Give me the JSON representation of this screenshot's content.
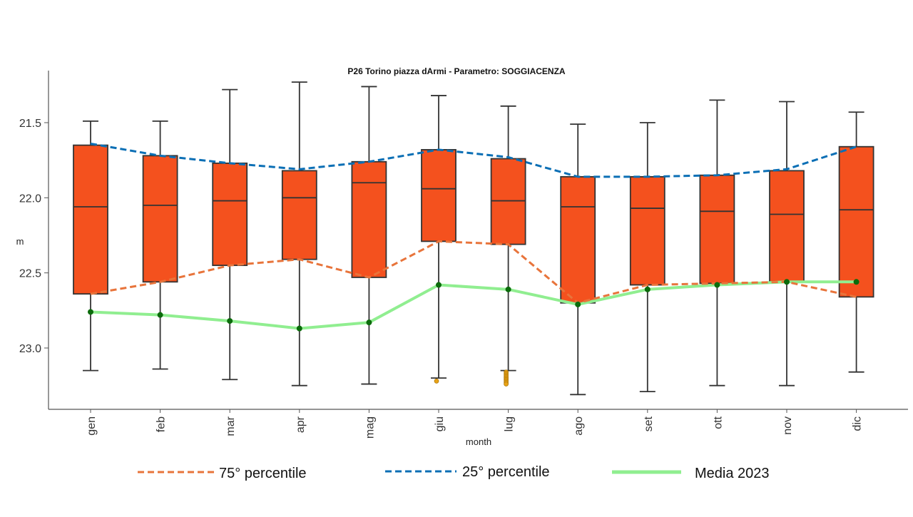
{
  "chart_data": {
    "type": "box",
    "title": "P26 Torino piazza dArmi - Parametro: SOGGIACENZA",
    "xlabel": "month",
    "ylabel": "m",
    "y_inverted": true,
    "ylim": [
      21.2,
      23.4
    ],
    "yticks": [
      "21.5",
      "22.0",
      "22.5",
      "23.0"
    ],
    "categories": [
      "gen",
      "feb",
      "mar",
      "apr",
      "mag",
      "giu",
      "lug",
      "ago",
      "set",
      "ott",
      "nov",
      "dic"
    ],
    "boxes": [
      {
        "whisker_low": 21.49,
        "q1": 21.65,
        "median": 22.06,
        "q3": 22.64,
        "whisker_high": 23.15,
        "outliers": []
      },
      {
        "whisker_low": 21.49,
        "q1": 21.72,
        "median": 22.05,
        "q3": 22.56,
        "whisker_high": 23.14,
        "outliers": []
      },
      {
        "whisker_low": 21.28,
        "q1": 21.77,
        "median": 22.02,
        "q3": 22.45,
        "whisker_high": 23.21,
        "outliers": []
      },
      {
        "whisker_low": 21.23,
        "q1": 21.82,
        "median": 22.0,
        "q3": 22.41,
        "whisker_high": 23.25,
        "outliers": []
      },
      {
        "whisker_low": 21.26,
        "q1": 21.76,
        "median": 21.9,
        "q3": 22.53,
        "whisker_high": 23.24,
        "outliers": []
      },
      {
        "whisker_low": 21.32,
        "q1": 21.68,
        "median": 21.94,
        "q3": 22.29,
        "whisker_high": 23.2,
        "outliers": [
          23.22
        ]
      },
      {
        "whisker_low": 21.39,
        "q1": 21.74,
        "median": 22.02,
        "q3": 22.31,
        "whisker_high": 23.15,
        "outliers": [
          23.16,
          23.17,
          23.18,
          23.19,
          23.2,
          23.21,
          23.22,
          23.23,
          23.24
        ]
      },
      {
        "whisker_low": 21.51,
        "q1": 21.86,
        "median": 22.06,
        "q3": 22.7,
        "whisker_high": 23.31,
        "outliers": []
      },
      {
        "whisker_low": 21.5,
        "q1": 21.86,
        "median": 22.07,
        "q3": 22.58,
        "whisker_high": 23.29,
        "outliers": []
      },
      {
        "whisker_low": 21.35,
        "q1": 21.85,
        "median": 22.09,
        "q3": 22.57,
        "whisker_high": 23.25,
        "outliers": []
      },
      {
        "whisker_low": 21.36,
        "q1": 21.82,
        "median": 22.11,
        "q3": 22.56,
        "whisker_high": 23.25,
        "outliers": []
      },
      {
        "whisker_low": 21.43,
        "q1": 21.66,
        "median": 22.08,
        "q3": 22.66,
        "whisker_high": 23.16,
        "outliers": []
      }
    ],
    "series": [
      {
        "name": "75° percentile",
        "style": "dashed",
        "color": "#E8743B",
        "values": [
          22.64,
          22.56,
          22.45,
          22.41,
          22.53,
          22.29,
          22.31,
          22.7,
          22.58,
          22.57,
          22.56,
          22.66
        ]
      },
      {
        "name": "25° percentile",
        "style": "dashed",
        "color": "#0B6FB5",
        "values": [
          21.64,
          21.72,
          21.77,
          21.81,
          21.76,
          21.68,
          21.73,
          21.86,
          21.86,
          21.85,
          21.81,
          21.66
        ]
      },
      {
        "name": "Media 2023",
        "style": "solid",
        "color": "#90EE90",
        "marker_color": "#0B6B0B",
        "values": [
          22.76,
          22.78,
          22.82,
          22.87,
          22.83,
          22.58,
          22.61,
          22.71,
          22.61,
          22.58,
          22.56,
          22.56
        ]
      }
    ],
    "box_fill": "#F4511E",
    "box_stroke": "#333333",
    "outlier_color": "#E8A317",
    "grid": false,
    "legend_position": "bottom"
  }
}
